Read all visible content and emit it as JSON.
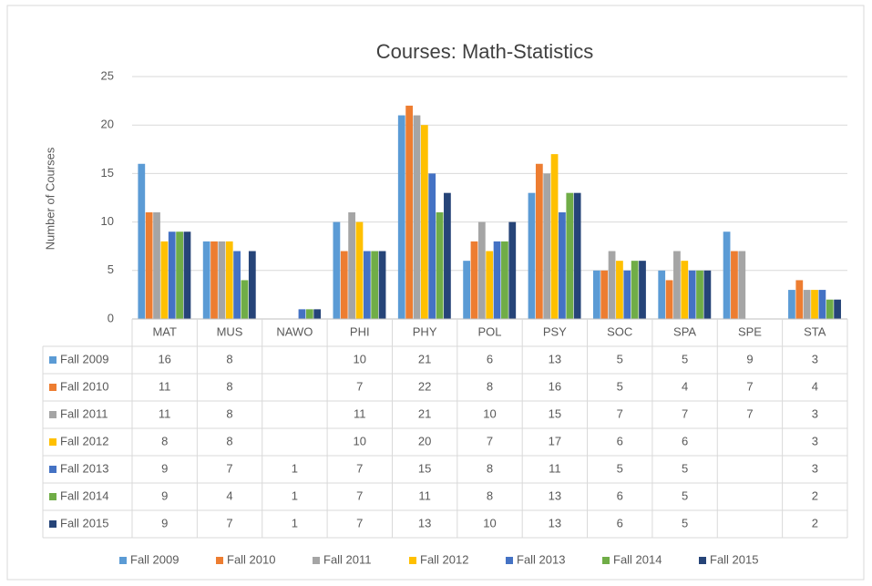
{
  "chart_data": {
    "type": "bar",
    "title": "Courses: Math-Statistics",
    "y_label": "Number of Courses",
    "categories": [
      "MAT",
      "MUS",
      "NAWO",
      "PHI",
      "PHY",
      "POL",
      "PSY",
      "SOC",
      "SPA",
      "SPE",
      "STA"
    ],
    "series": [
      {
        "name": "Fall 2009",
        "color": "#5b9bd5",
        "values": [
          16,
          8,
          null,
          10,
          21,
          6,
          13,
          5,
          5,
          9,
          3
        ]
      },
      {
        "name": "Fall 2010",
        "color": "#ed7d31",
        "values": [
          11,
          8,
          null,
          7,
          22,
          8,
          16,
          5,
          4,
          7,
          4
        ]
      },
      {
        "name": "Fall 2011",
        "color": "#a5a5a5",
        "values": [
          11,
          8,
          null,
          11,
          21,
          10,
          15,
          7,
          7,
          7,
          3
        ]
      },
      {
        "name": "Fall 2012",
        "color": "#ffc000",
        "values": [
          8,
          8,
          null,
          10,
          20,
          7,
          17,
          6,
          6,
          null,
          3
        ]
      },
      {
        "name": "Fall 2013",
        "color": "#4472c4",
        "values": [
          9,
          7,
          1,
          7,
          15,
          8,
          11,
          5,
          5,
          null,
          3
        ]
      },
      {
        "name": "Fall 2014",
        "color": "#70ad47",
        "values": [
          9,
          4,
          1,
          7,
          11,
          8,
          13,
          6,
          5,
          null,
          2
        ]
      },
      {
        "name": "Fall 2015",
        "color": "#264478",
        "values": [
          9,
          7,
          1,
          7,
          13,
          10,
          13,
          6,
          5,
          null,
          2
        ]
      }
    ],
    "ylim": [
      0,
      25
    ],
    "yticks": [
      0,
      5,
      10,
      15,
      20,
      25
    ],
    "grid": true,
    "legend": "bottom"
  }
}
